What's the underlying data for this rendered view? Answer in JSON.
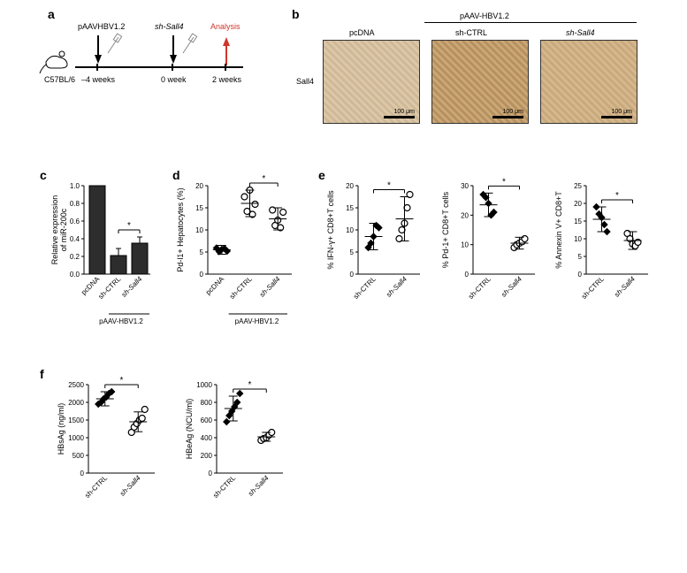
{
  "panels": {
    "a": {
      "label": "a"
    },
    "b": {
      "label": "b"
    },
    "c": {
      "label": "c"
    },
    "d": {
      "label": "d"
    },
    "e": {
      "label": "e"
    },
    "f": {
      "label": "f"
    }
  },
  "panelA": {
    "mouse_strain": "C57BL/6",
    "inject1": "pAAVHBV1.2",
    "inject2": "sh-Sall4",
    "analysis": "Analysis",
    "t1": "–4 weeks",
    "t2": "0 week",
    "t3": "2 weeks"
  },
  "panelB": {
    "group_label": "pAAV-HBV1.2",
    "row_label": "Sall4",
    "conditions": [
      "pcDNA",
      "sh-CTRL",
      "sh-Sall4"
    ],
    "scale_bar": "100 μm"
  },
  "panelC": {
    "ylabel": "Relative expression\nof miR-200c",
    "xgroups": [
      "pcDNA",
      "sh-CTRL",
      "sh-Sall4"
    ],
    "bottom_group": "pAAV-HBV1.2",
    "values": [
      1.0,
      0.21,
      0.35
    ],
    "errors": [
      0,
      0.08,
      0.07
    ],
    "ylim": [
      0,
      1.0
    ],
    "ytick_step": 0.2,
    "sig": "*",
    "bar_color": "#2d2d2d"
  },
  "panelD": {
    "ylabel": "Pd-l1+ Hepatocytes (%)",
    "xgroups": [
      "pcDNA",
      "sh-CTRL",
      "sh-Sall4"
    ],
    "bottom_group": "pAAV-HBV1.2",
    "means": [
      5.5,
      16.0,
      12.5
    ],
    "sds": [
      1.0,
      3.0,
      2.5
    ],
    "points": [
      [
        5.9,
        5.1,
        5.6,
        5.8,
        5.2
      ],
      [
        17.5,
        14.2,
        19.0,
        13.5,
        15.8
      ],
      [
        14.5,
        11.0,
        12.2,
        10.5,
        14.0
      ]
    ],
    "ylim": [
      0,
      20
    ],
    "ytick_step": 5,
    "sig": "*"
  },
  "panelE1": {
    "ylabel": "% IFN-γ+ CD8+T cells",
    "xgroups": [
      "sh-CTRL",
      "sh-Sall4"
    ],
    "means": [
      8.5,
      12.5
    ],
    "sds": [
      3.0,
      5.0
    ],
    "points": [
      [
        6,
        7,
        8.5,
        11,
        10.5
      ],
      [
        8,
        10,
        11.5,
        15,
        18
      ]
    ],
    "ylim": [
      0,
      20
    ],
    "ytick_step": 5,
    "sig": "*"
  },
  "panelE2": {
    "ylabel": "% Pd-1+ CD8+T cells",
    "xgroups": [
      "sh-CTRL",
      "sh-Sall4"
    ],
    "means": [
      23.5,
      10.5
    ],
    "sds": [
      4.0,
      2.0
    ],
    "points": [
      [
        27,
        26,
        24,
        20,
        21
      ],
      [
        9,
        10,
        10.5,
        11,
        12
      ]
    ],
    "ylim": [
      0,
      30
    ],
    "ytick_step": 10,
    "sig": "*"
  },
  "panelE3": {
    "ylabel": "% Annexin V+ CD8+T",
    "xgroups": [
      "sh-CTRL",
      "sh-Sall4"
    ],
    "means": [
      15.5,
      9.5
    ],
    "sds": [
      3.5,
      2.5
    ],
    "points": [
      [
        19,
        17,
        16,
        14,
        12
      ],
      [
        11.5,
        10,
        8.5,
        8,
        9
      ]
    ],
    "ylim": [
      0,
      25
    ],
    "ytick_step": 5,
    "sig": "*"
  },
  "panelF1": {
    "ylabel": "HBsAg (ng/ml)",
    "xgroups": [
      "sh-CTRL",
      "sh-Sall4"
    ],
    "means": [
      2100,
      1450
    ],
    "sds": [
      200,
      280
    ],
    "points": [
      [
        1950,
        2000,
        2100,
        2150,
        2250,
        2300
      ],
      [
        1150,
        1300,
        1400,
        1500,
        1550,
        1800
      ]
    ],
    "ylim": [
      0,
      2500
    ],
    "ytick_step": 500,
    "sig": "*"
  },
  "panelF2": {
    "ylabel": "HBeAg (NCU/ml)",
    "xgroups": [
      "sh-CTRL",
      "sh-Sall4"
    ],
    "means": [
      730,
      410
    ],
    "sds": [
      140,
      50
    ],
    "points": [
      [
        580,
        650,
        700,
        750,
        800,
        900
      ],
      [
        370,
        390,
        400,
        430,
        460
      ]
    ],
    "ylim": [
      0,
      1000
    ],
    "ytick_step": 200,
    "sig": "*"
  },
  "style": {
    "axis_color": "#000000",
    "bar_color": "#2d2d2d",
    "background": "#ffffff",
    "text_color": "#000000",
    "diamond_fill": "#000000",
    "circle_stroke": "#000000",
    "red_arrow": "#d0342c",
    "font_family": "Arial",
    "axis_fontsize": 9,
    "tick_fontsize": 8,
    "panel_label_fontsize": 14
  }
}
